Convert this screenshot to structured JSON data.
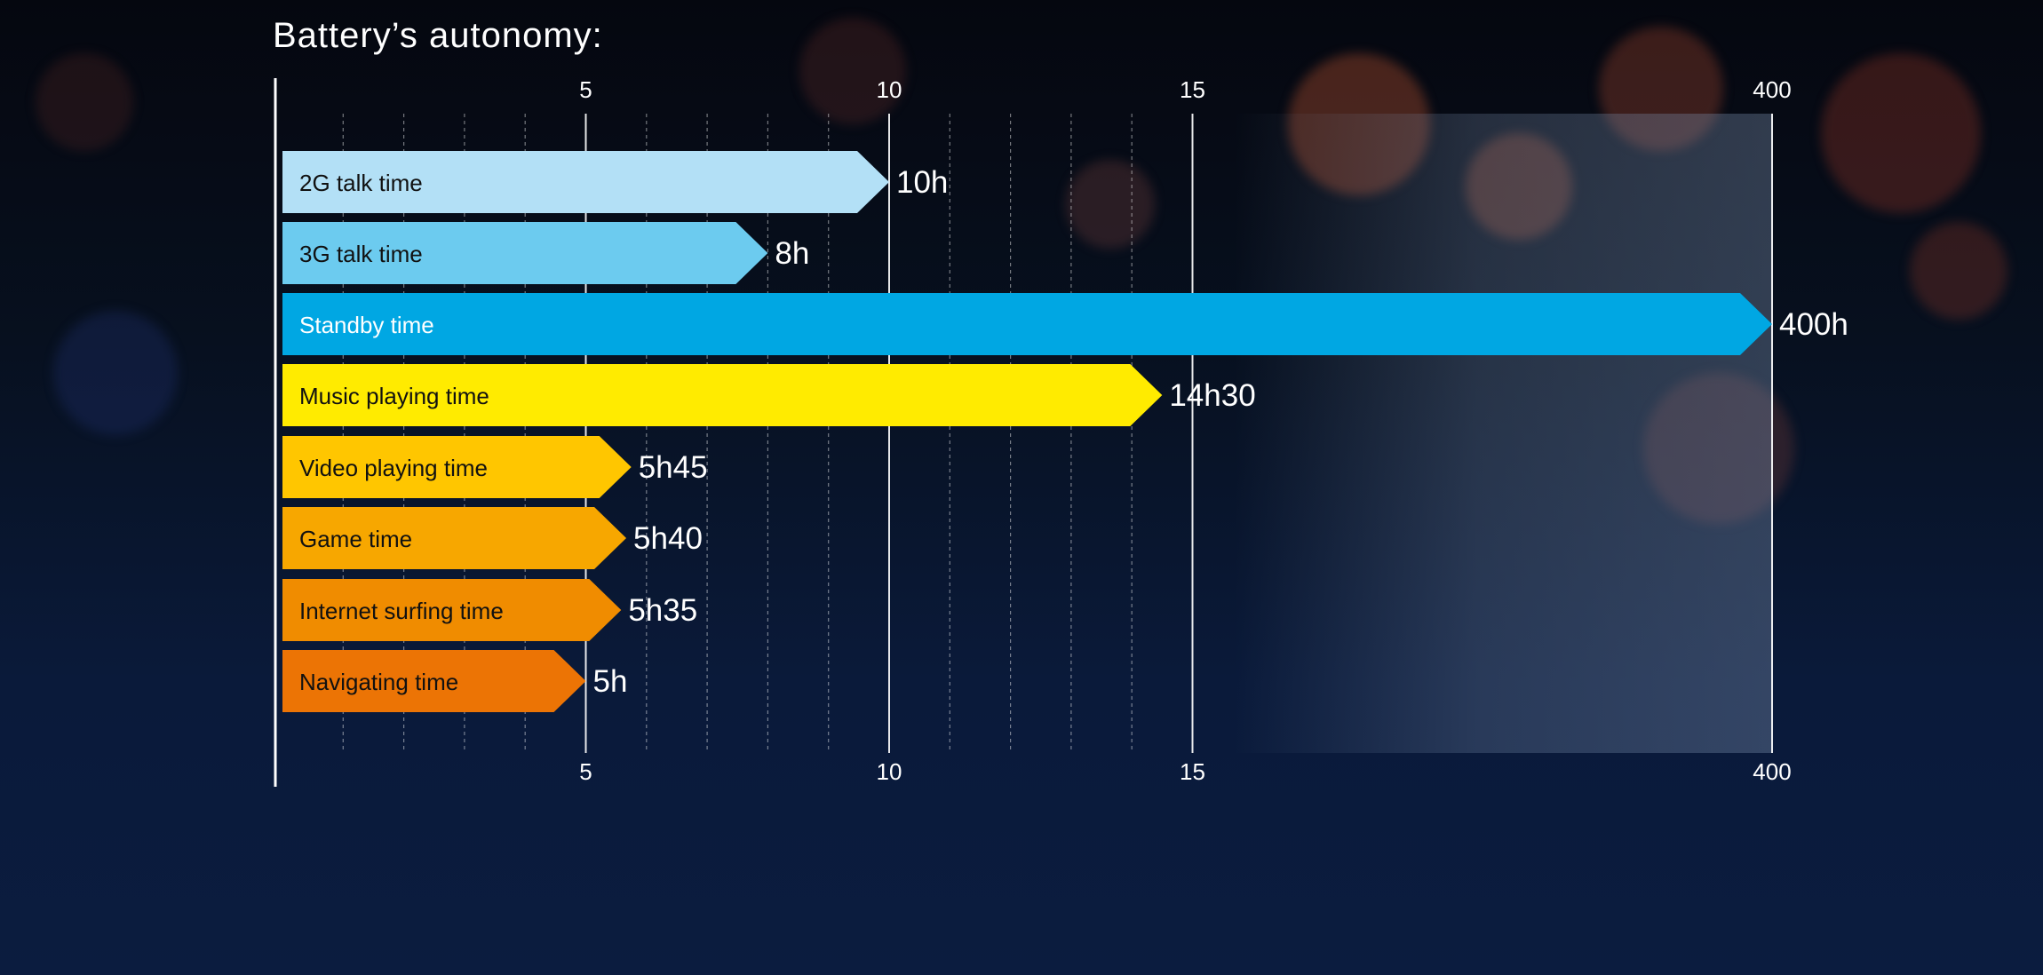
{
  "title": "Battery’s autonomy:",
  "chart_data": {
    "type": "bar",
    "orientation": "horizontal",
    "title": "Battery’s autonomy:",
    "xlabel": "",
    "ylabel": "",
    "x_ticks": [
      "5",
      "10",
      "15",
      "400"
    ],
    "x_tick_values": [
      5,
      10,
      15,
      400
    ],
    "x_scale": "broken axis between 15 and 400",
    "grid": true,
    "categories": [
      "2G talk time",
      "3G talk time",
      "Standby time",
      "Music playing time",
      "Video playing time",
      "Game time",
      "Internet surfing time",
      "Navigating time"
    ],
    "values": [
      10,
      8,
      400,
      14.5,
      5.75,
      5.667,
      5.583,
      5
    ],
    "value_labels": [
      "10h",
      "8h",
      "400h",
      "14h30",
      "5h45",
      "5h40",
      "5h35",
      "5h"
    ],
    "colors": [
      "#b3e0f6",
      "#6ccbef",
      "#00a7e3",
      "#ffeb00",
      "#ffc600",
      "#f7a700",
      "#f08c00",
      "#ec7405"
    ],
    "label_colors": [
      "#111111",
      "#111111",
      "#ffffff",
      "#111111",
      "#111111",
      "#111111",
      "#111111",
      "#111111"
    ]
  }
}
